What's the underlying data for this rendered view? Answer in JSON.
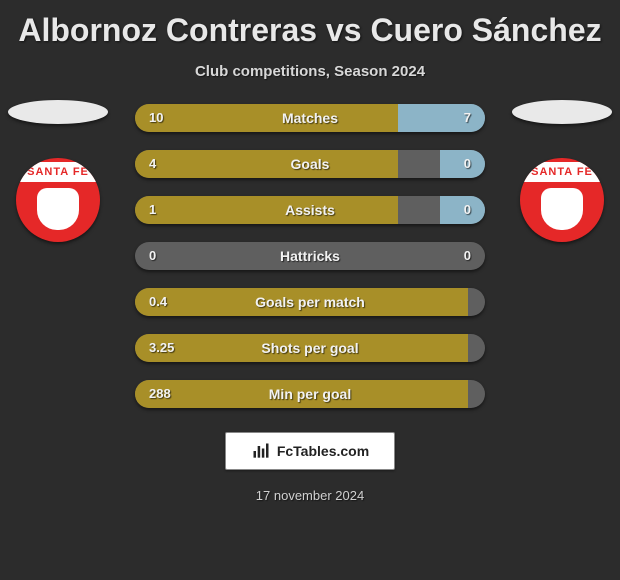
{
  "colors": {
    "background": "#2c2c2c",
    "bar_track": "#5f5f5f",
    "left_fill": "#a88f28",
    "right_fill": "#8cb4c7",
    "text": "#f2f2f2",
    "badge_primary": "#e52828",
    "badge_band": "#ffffff"
  },
  "header": {
    "title": "Albornoz Contreras vs Cuero Sánchez",
    "subtitle": "Club competitions, Season 2024"
  },
  "players": {
    "left": {
      "club_short": "SANTA FE"
    },
    "right": {
      "club_short": "SANTA FE"
    }
  },
  "bars": [
    {
      "label": "Matches",
      "left_value": "10",
      "right_value": "7",
      "left_pct": 75,
      "right_pct": 25
    },
    {
      "label": "Goals",
      "left_value": "4",
      "right_value": "0",
      "left_pct": 75,
      "right_pct": 13
    },
    {
      "label": "Assists",
      "left_value": "1",
      "right_value": "0",
      "left_pct": 75,
      "right_pct": 13
    },
    {
      "label": "Hattricks",
      "left_value": "0",
      "right_value": "0",
      "left_pct": 0,
      "right_pct": 0
    },
    {
      "label": "Goals per match",
      "left_value": "0.4",
      "right_value": "",
      "left_pct": 95,
      "right_pct": 0
    },
    {
      "label": "Shots per goal",
      "left_value": "3.25",
      "right_value": "",
      "left_pct": 95,
      "right_pct": 0
    },
    {
      "label": "Min per goal",
      "left_value": "288",
      "right_value": "",
      "left_pct": 95,
      "right_pct": 0
    }
  ],
  "brand": {
    "text": "FcTables.com"
  },
  "footer": {
    "date": "17 november 2024"
  }
}
